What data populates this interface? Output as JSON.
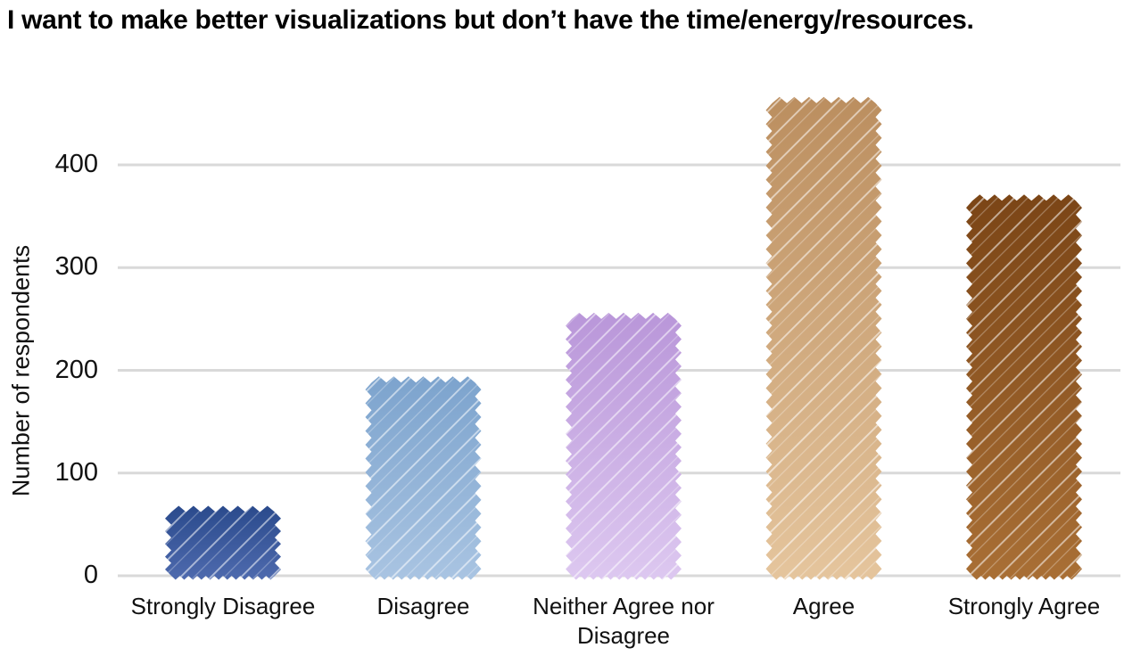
{
  "chart_data": {
    "type": "bar",
    "title": "I want to make better visualizations but don’t have the time/energy/resources.",
    "ylabel": "Number of respondents",
    "xlabel": "",
    "categories": [
      "Strongly Disagree",
      "Disagree",
      "Neither Agree nor Disagree",
      "Agree",
      "Strongly Agree"
    ],
    "values": [
      62,
      188,
      250,
      460,
      365
    ],
    "yticks": [
      0,
      100,
      200,
      300,
      400
    ],
    "ytick_labels": [
      "0",
      "100",
      "200",
      "300",
      "400"
    ],
    "ylim": [
      0,
      485
    ],
    "grid": true,
    "legend": false,
    "style": "hand-drawn bars with zigzag edges and diagonal white hatching",
    "bar_colors": [
      {
        "name": "dark-blue",
        "top": "#2a4a8c",
        "bottom": "#4e6aae"
      },
      {
        "name": "light-blue",
        "top": "#7ca3cd",
        "bottom": "#a9c4e2"
      },
      {
        "name": "lavender",
        "top": "#b996d9",
        "bottom": "#ddc8f0"
      },
      {
        "name": "tan",
        "top": "#bb8e5f",
        "bottom": "#e5c59d"
      },
      {
        "name": "brown",
        "top": "#7b4516",
        "bottom": "#a96f35"
      }
    ],
    "hatch_color": "#ffffff",
    "gridline_color": "#d9d9d9",
    "text_color": "#111111",
    "background_color": "#ffffff"
  }
}
